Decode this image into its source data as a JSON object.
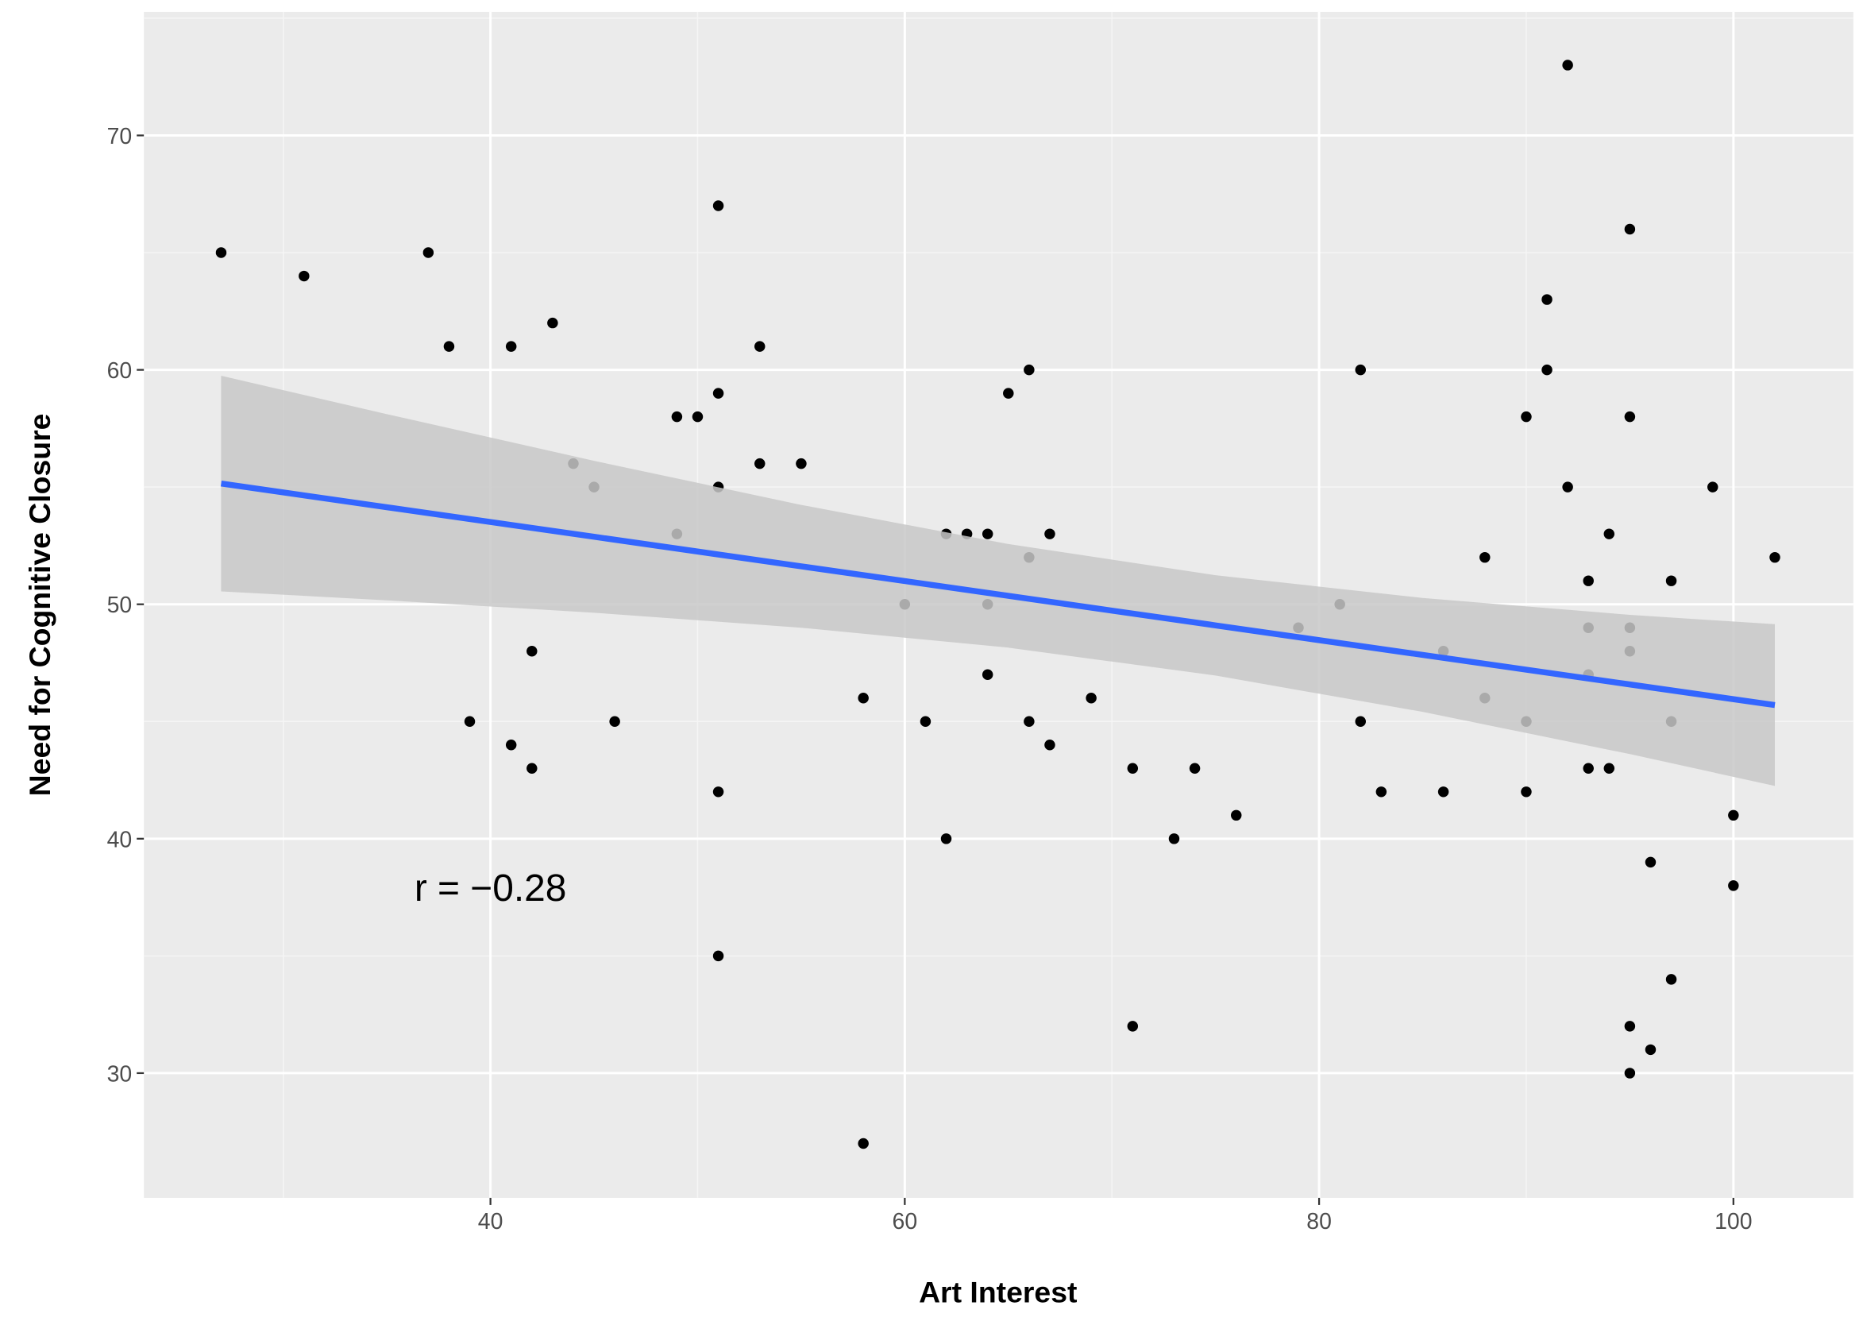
{
  "chart_data": {
    "type": "scatter",
    "x_label": "Art Interest",
    "y_label": "Need for Cognitive Closure",
    "xlim": [
      23.27,
      105.79
    ],
    "ylim": [
      24.68,
      75.27
    ],
    "xticks": [
      40,
      60,
      80,
      100
    ],
    "yticks": [
      30,
      40,
      50,
      60,
      70
    ],
    "x_minor_ticks": [
      30,
      50,
      70,
      90
    ],
    "y_minor_ticks": [
      35,
      45,
      55,
      65,
      75
    ],
    "grid": true,
    "color": "#000000",
    "x": [
      27,
      31,
      37,
      38,
      39,
      41,
      41,
      42,
      42,
      43,
      44,
      45,
      46,
      49,
      49,
      50,
      51,
      51,
      51,
      51,
      51,
      53,
      53,
      55,
      58,
      58,
      60,
      61,
      62,
      62,
      63,
      64,
      64,
      64,
      65,
      66,
      66,
      66,
      67,
      67,
      69,
      71,
      71,
      73,
      74,
      76,
      79,
      81,
      82,
      82,
      83,
      86,
      86,
      88,
      88,
      90,
      90,
      90,
      91,
      91,
      92,
      92,
      93,
      93,
      93,
      93,
      94,
      94,
      95,
      95,
      95,
      95,
      95,
      95,
      96,
      96,
      97,
      97,
      97,
      99,
      100,
      100,
      102
    ],
    "values": [
      65,
      64,
      65,
      61,
      45,
      61,
      44,
      48,
      43,
      62,
      56,
      55,
      45,
      58,
      53,
      58,
      67,
      59,
      55,
      42,
      35,
      61,
      56,
      56,
      46,
      27,
      50,
      45,
      53,
      40,
      53,
      53,
      50,
      47,
      59,
      60,
      52,
      45,
      53,
      44,
      46,
      43,
      32,
      40,
      43,
      41,
      49,
      50,
      60,
      45,
      42,
      48,
      42,
      52,
      46,
      58,
      45,
      42,
      63,
      60,
      73,
      55,
      51,
      49,
      47,
      43,
      53,
      43,
      66,
      58,
      49,
      48,
      32,
      30,
      39,
      31,
      51,
      45,
      34,
      55,
      41,
      38,
      52
    ],
    "fit": {
      "color": "#3366ff",
      "band_color": "#c8c8c8",
      "x": [
        27,
        35,
        45,
        55,
        65,
        75,
        85,
        95,
        102
      ],
      "values": [
        55.15,
        54.14,
        52.88,
        51.62,
        50.36,
        49.1,
        47.84,
        46.58,
        45.7
      ],
      "upper": [
        59.75,
        58.11,
        56.12,
        54.24,
        52.57,
        51.24,
        50.27,
        49.55,
        49.15
      ],
      "lower": [
        50.55,
        50.17,
        49.64,
        49.0,
        48.15,
        46.96,
        45.41,
        43.61,
        42.25
      ]
    },
    "annotation": {
      "text": "r = −0.28",
      "x": 40,
      "y": 37.9
    }
  }
}
